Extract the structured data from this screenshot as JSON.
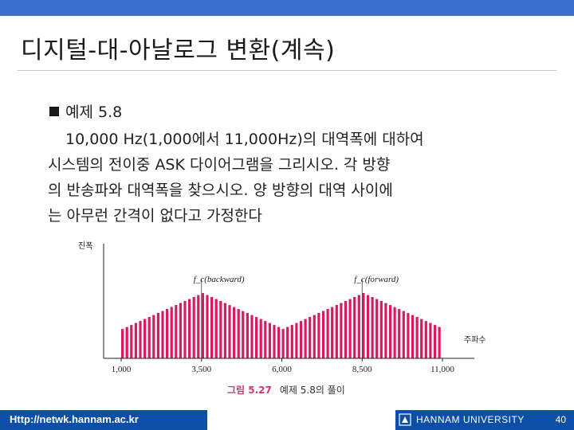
{
  "slide": {
    "title": "디지털-대-아날로그 변환(계속)",
    "example_label": "예제 5.8",
    "body_lines": [
      "10,000 Hz(1,000에서 11,000Hz)의 대역폭에 대하여",
      "시스템의 전이중 ASK 다이어그램을 그리시오. 각 방향",
      "의 반송파와 대역폭을 찾으시오. 양 방향의 대역 사이에",
      "는 아무런 간격이 없다고 가정한다"
    ]
  },
  "figure": {
    "caption_number": "그림 5.27",
    "caption_text": "예제 5.8의 풀이"
  },
  "chart_data": {
    "type": "bar",
    "ylabel": "진폭",
    "xlabel": "주파수",
    "x_ticks": [
      "1,000",
      "3,500",
      "6,000",
      "8,500",
      "11,000"
    ],
    "xlim": [
      1000,
      11000
    ],
    "annotations": [
      {
        "text": "f_c(backward)",
        "x": 3500
      },
      {
        "text": "f_c(forward)",
        "x": 8500
      }
    ],
    "series": [
      {
        "name": "backward",
        "x_range": [
          1000,
          6000
        ],
        "peak_x": 3500,
        "peak_rel": 1.0,
        "edge_rel": 0.45
      },
      {
        "name": "forward",
        "x_range": [
          6000,
          11000
        ],
        "peak_x": 8500,
        "peak_rel": 1.0,
        "edge_rel": 0.45
      }
    ],
    "color": "#d81b60"
  },
  "footer": {
    "url": "Http://netwk.hannam.ac.kr",
    "university": "HANNAM UNIVERSITY",
    "page": "40"
  }
}
